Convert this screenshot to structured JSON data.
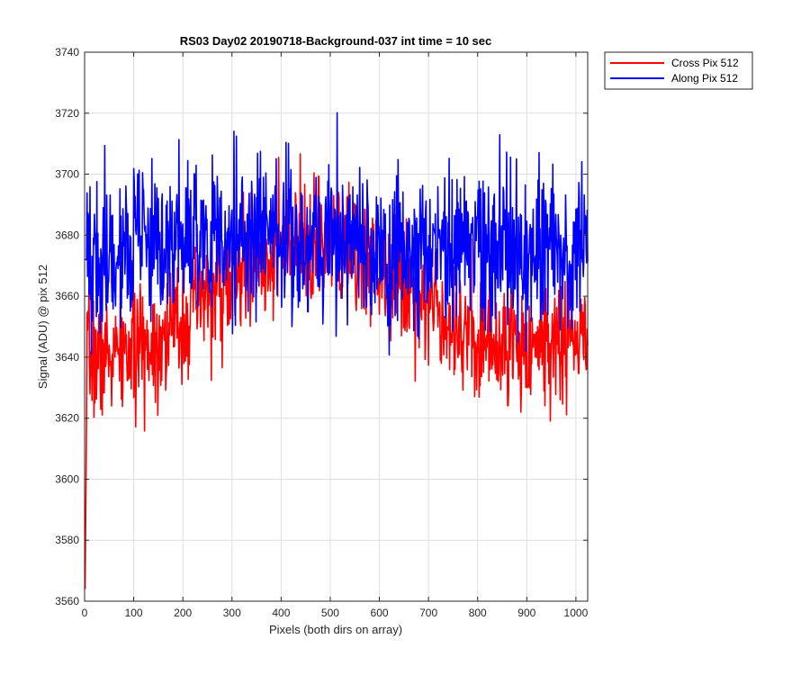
{
  "chart_data": {
    "type": "line",
    "title": "RS03 Day02 20190718-Background-037 int time = 10 sec",
    "xlabel": "Pixels (both dirs on array)",
    "ylabel": "Signal (ADU) @ pix 512",
    "xlim": [
      0,
      1024
    ],
    "ylim": [
      3560,
      3740
    ],
    "xticks": [
      0,
      100,
      200,
      300,
      400,
      500,
      600,
      700,
      800,
      900,
      1000
    ],
    "yticks": [
      3560,
      3580,
      3600,
      3620,
      3640,
      3660,
      3680,
      3700,
      3720,
      3740
    ],
    "grid": true,
    "legend_position": "outside-top-right",
    "x_range": [
      1,
      1024
    ],
    "series": [
      {
        "name": "Cross Pix 512",
        "color": "#ff0000",
        "anchors": [
          [
            1,
            3564
          ],
          [
            5,
            3640
          ],
          [
            25,
            3640
          ],
          [
            50,
            3640
          ],
          [
            100,
            3642
          ],
          [
            150,
            3646
          ],
          [
            200,
            3652
          ],
          [
            250,
            3660
          ],
          [
            300,
            3665
          ],
          [
            350,
            3672
          ],
          [
            400,
            3675
          ],
          [
            450,
            3676
          ],
          [
            500,
            3676
          ],
          [
            550,
            3673
          ],
          [
            600,
            3670
          ],
          [
            650,
            3664
          ],
          [
            700,
            3660
          ],
          [
            750,
            3652
          ],
          [
            800,
            3646
          ],
          [
            850,
            3644
          ],
          [
            900,
            3644
          ],
          [
            950,
            3645
          ],
          [
            1000,
            3646
          ],
          [
            1024,
            3646
          ]
        ],
        "noise_sd": 10,
        "seed": 7
      },
      {
        "name": "Along Pix 512",
        "color": "#0000ff",
        "anchors": [
          [
            1,
            3672
          ],
          [
            25,
            3672
          ],
          [
            50,
            3675
          ],
          [
            100,
            3676
          ],
          [
            150,
            3677
          ],
          [
            200,
            3677
          ],
          [
            250,
            3678
          ],
          [
            300,
            3680
          ],
          [
            350,
            3680
          ],
          [
            400,
            3680
          ],
          [
            450,
            3680
          ],
          [
            500,
            3679
          ],
          [
            550,
            3678
          ],
          [
            600,
            3675
          ],
          [
            650,
            3674
          ],
          [
            700,
            3676
          ],
          [
            750,
            3676
          ],
          [
            800,
            3675
          ],
          [
            850,
            3676
          ],
          [
            900,
            3675
          ],
          [
            950,
            3675
          ],
          [
            1000,
            3674
          ],
          [
            1024,
            3672
          ]
        ],
        "noise_sd": 13,
        "seed": 19
      }
    ]
  }
}
